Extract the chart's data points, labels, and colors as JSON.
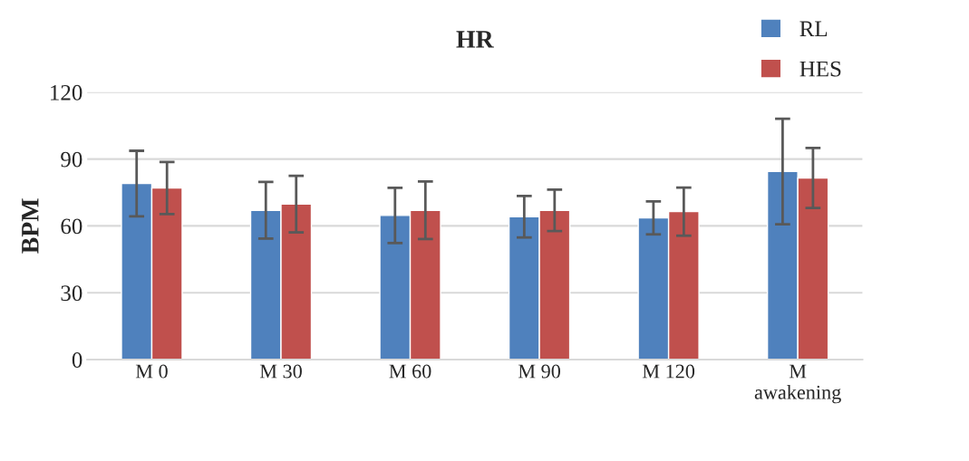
{
  "chart_data": {
    "type": "bar",
    "title": "HR",
    "ylabel": "BPM",
    "categories": [
      "M 0",
      "M 30",
      "M 60",
      "M 90",
      "M 120",
      "M\nawakening"
    ],
    "series": [
      {
        "name": "RL",
        "color": "#4f81bd",
        "values": [
          79,
          67,
          64.7,
          64.1,
          63.6,
          84.4
        ],
        "errors": [
          14.7,
          12.7,
          12.4,
          9.3,
          7.4,
          23.7
        ]
      },
      {
        "name": "HES",
        "color": "#c0504d",
        "values": [
          77,
          69.8,
          67,
          67,
          66.4,
          81.5
        ],
        "errors": [
          11.7,
          12.7,
          12.9,
          9.3,
          10.8,
          13.5
        ]
      }
    ],
    "ylim": [
      0,
      120
    ],
    "yticks": [
      0,
      30,
      60,
      90,
      120
    ],
    "grid": "y",
    "legend": "top right"
  }
}
